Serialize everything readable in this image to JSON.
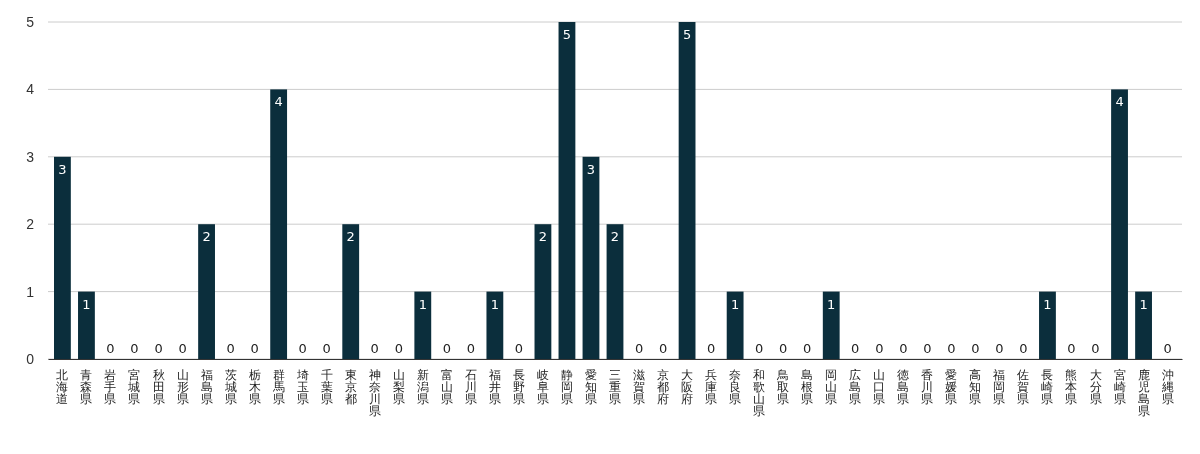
{
  "chart_data": {
    "type": "bar",
    "categories": [
      "北海道",
      "青森県",
      "岩手県",
      "宮城県",
      "秋田県",
      "山形県",
      "福島県",
      "茨城県",
      "栃木県",
      "群馬県",
      "埼玉県",
      "千葉県",
      "東京都",
      "神奈川県",
      "山梨県",
      "新潟県",
      "富山県",
      "石川県",
      "福井県",
      "長野県",
      "岐阜県",
      "静岡県",
      "愛知県",
      "三重県",
      "滋賀県",
      "京都府",
      "大阪府",
      "兵庫県",
      "奈良県",
      "和歌山県",
      "鳥取県",
      "島根県",
      "岡山県",
      "広島県",
      "山口県",
      "徳島県",
      "香川県",
      "愛媛県",
      "高知県",
      "福岡県",
      "佐賀県",
      "長崎県",
      "熊本県",
      "大分県",
      "宮崎県",
      "鹿児島県",
      "沖縄県"
    ],
    "values": [
      3,
      1,
      0,
      0,
      0,
      0,
      2,
      0,
      0,
      4,
      0,
      0,
      2,
      0,
      0,
      1,
      0,
      0,
      1,
      0,
      2,
      5,
      3,
      2,
      0,
      0,
      5,
      0,
      1,
      0,
      0,
      0,
      1,
      0,
      0,
      0,
      0,
      0,
      0,
      0,
      0,
      1,
      0,
      0,
      4,
      1,
      0
    ],
    "color": "#0b2e3c",
    "ylim": [
      0,
      5
    ],
    "yticks": [
      0,
      1,
      2,
      3,
      4,
      5
    ],
    "grid": "y",
    "data_labels": true
  }
}
